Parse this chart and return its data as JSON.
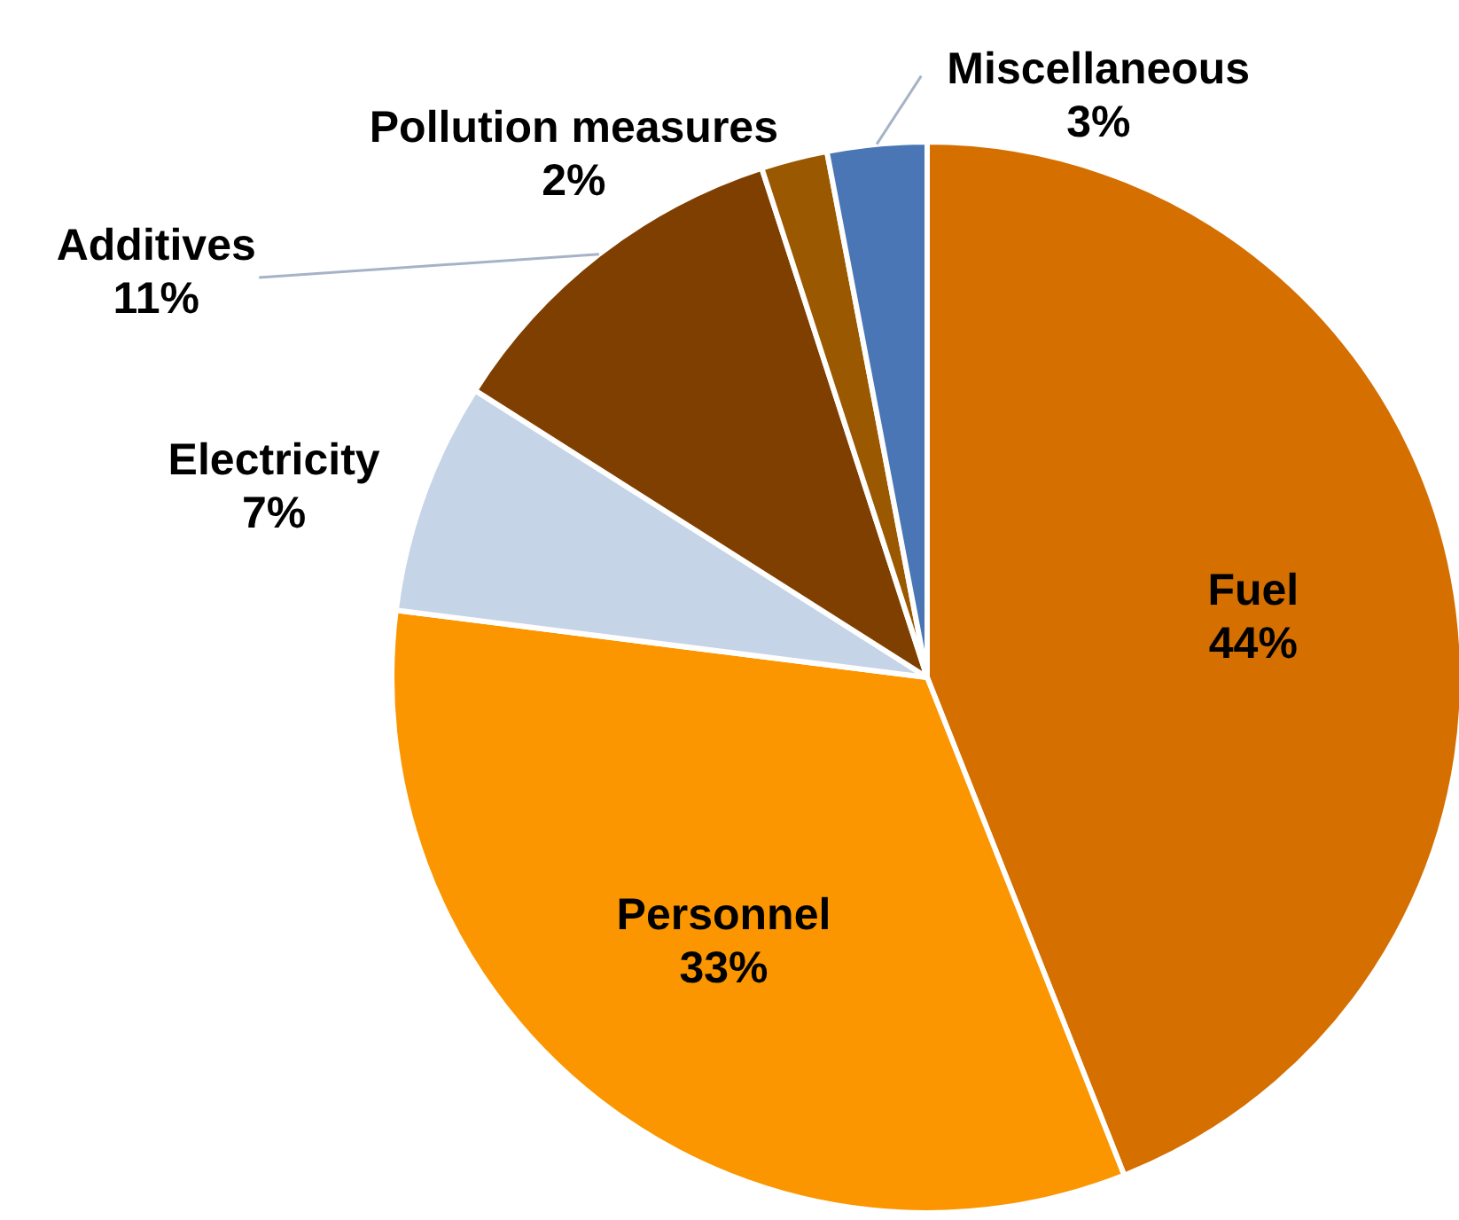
{
  "chart_data": {
    "type": "pie",
    "categories": [
      "Fuel",
      "Personnel",
      "Electricity",
      "Additives",
      "Pollution measures",
      "Miscellaneous"
    ],
    "values": [
      44,
      33,
      7,
      11,
      2,
      3
    ],
    "value_labels": [
      "44%",
      "33%",
      "7%",
      "11%",
      "2%",
      "3%"
    ],
    "colors": [
      "#d46f00",
      "#fb9500",
      "#c6d4e8",
      "#7f3f00",
      "#9a5800",
      "#4a76b5"
    ]
  }
}
